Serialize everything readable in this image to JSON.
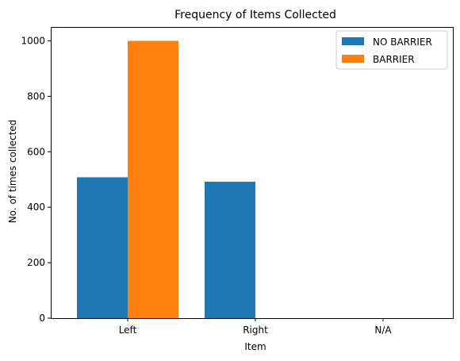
{
  "chart_data": {
    "type": "bar",
    "title": "Frequency of Items Collected",
    "xlabel": "Item",
    "ylabel": "No. of times collected",
    "categories": [
      "Left",
      "Right",
      "N/A"
    ],
    "series": [
      {
        "name": "NO BARRIER",
        "values": [
          508,
          492,
          0
        ],
        "color": "#1f77b4"
      },
      {
        "name": "BARRIER",
        "values": [
          1000,
          0,
          0
        ],
        "color": "#ff7f0e"
      }
    ],
    "ylim": [
      0,
      1050
    ],
    "yticks": [
      0,
      200,
      400,
      600,
      800,
      1000
    ],
    "grid": false,
    "legend_position": "top-right"
  }
}
